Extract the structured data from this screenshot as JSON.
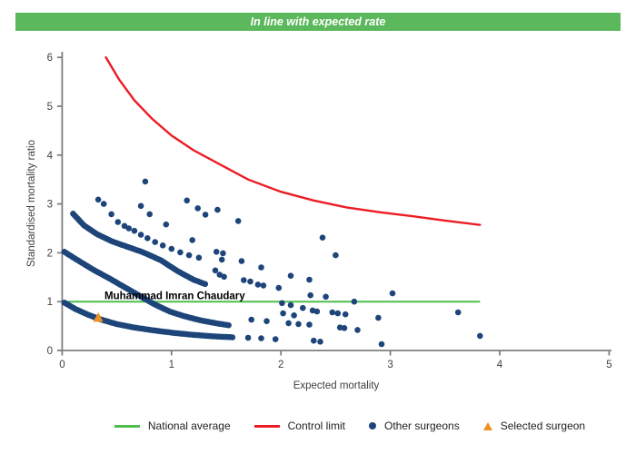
{
  "banner": {
    "text": "In line with expected rate",
    "bg": "#5cb85c",
    "fg": "#ffffff"
  },
  "chart_data": {
    "type": "scatter",
    "title": "",
    "xlabel": "Expected mortality",
    "ylabel": "Standardised mortality ratio",
    "xlim": [
      0,
      5
    ],
    "ylim": [
      0,
      6
    ],
    "xticks": [
      0,
      1,
      2,
      3,
      4,
      5
    ],
    "yticks": [
      0,
      1,
      2,
      3,
      4,
      5,
      6
    ],
    "grid": false,
    "legend_position": "bottom",
    "axis_color": "#7f7f7f",
    "tick_label_color": "#404040",
    "national_average": {
      "y": 1.0,
      "x_start": 0.0,
      "x_end": 3.82,
      "color": "#4dbd4d"
    },
    "control_limit": {
      "color": "#ed1c24",
      "points": [
        [
          0.4,
          6.0
        ],
        [
          0.52,
          5.55
        ],
        [
          0.66,
          5.12
        ],
        [
          0.82,
          4.75
        ],
        [
          1.0,
          4.4
        ],
        [
          1.2,
          4.1
        ],
        [
          1.45,
          3.8
        ],
        [
          1.7,
          3.5
        ],
        [
          2.0,
          3.25
        ],
        [
          2.3,
          3.07
        ],
        [
          2.6,
          2.93
        ],
        [
          2.9,
          2.83
        ],
        [
          3.2,
          2.75
        ],
        [
          3.5,
          2.66
        ],
        [
          3.82,
          2.57
        ]
      ]
    },
    "other_surgeons": {
      "color": "#1d4579",
      "dot_radius": 3.3,
      "bands": [
        {
          "name": "band-1-lowest",
          "spacing_px": 2.3,
          "anchors": [
            [
              0.02,
              0.98
            ],
            [
              0.12,
              0.85
            ],
            [
              0.24,
              0.73
            ],
            [
              0.36,
              0.63
            ],
            [
              0.5,
              0.54
            ],
            [
              0.66,
              0.47
            ],
            [
              0.84,
              0.41
            ],
            [
              1.02,
              0.36
            ],
            [
              1.2,
              0.32
            ],
            [
              1.38,
              0.29
            ],
            [
              1.56,
              0.27
            ]
          ]
        },
        {
          "name": "band-2",
          "spacing_px": 2.3,
          "anchors": [
            [
              0.02,
              2.02
            ],
            [
              0.14,
              1.85
            ],
            [
              0.28,
              1.66
            ],
            [
              0.42,
              1.49
            ],
            [
              0.56,
              1.31
            ],
            [
              0.7,
              1.13
            ],
            [
              0.84,
              0.95
            ],
            [
              0.98,
              0.8
            ],
            [
              1.12,
              0.7
            ],
            [
              1.26,
              0.62
            ],
            [
              1.4,
              0.56
            ],
            [
              1.54,
              0.51
            ]
          ]
        },
        {
          "name": "band-3",
          "spacing_px": 2.6,
          "anchors": [
            [
              0.1,
              2.8
            ],
            [
              0.2,
              2.56
            ],
            [
              0.32,
              2.38
            ],
            [
              0.46,
              2.23
            ],
            [
              0.6,
              2.12
            ],
            [
              0.74,
              2.01
            ],
            [
              0.9,
              1.85
            ],
            [
              1.06,
              1.62
            ],
            [
              1.2,
              1.45
            ],
            [
              1.32,
              1.35
            ]
          ]
        }
      ],
      "points": [
        [
          0.33,
          3.09
        ],
        [
          0.38,
          3.0
        ],
        [
          0.45,
          2.79
        ],
        [
          0.51,
          2.63
        ],
        [
          0.57,
          2.55
        ],
        [
          0.61,
          2.5
        ],
        [
          0.66,
          2.45
        ],
        [
          0.72,
          2.37
        ],
        [
          0.78,
          2.3
        ],
        [
          0.85,
          2.22
        ],
        [
          0.92,
          2.15
        ],
        [
          1.0,
          2.08
        ],
        [
          1.08,
          2.01
        ],
        [
          1.16,
          1.95
        ],
        [
          1.25,
          1.9
        ],
        [
          0.72,
          2.96
        ],
        [
          0.8,
          2.79
        ],
        [
          0.95,
          2.58
        ],
        [
          1.19,
          2.26
        ],
        [
          1.14,
          3.07
        ],
        [
          1.24,
          2.91
        ],
        [
          1.31,
          2.78
        ],
        [
          0.76,
          3.46
        ],
        [
          1.42,
          2.88
        ],
        [
          1.61,
          2.65
        ],
        [
          1.41,
          2.02
        ],
        [
          1.47,
          1.99
        ],
        [
          1.46,
          1.86
        ],
        [
          1.64,
          1.83
        ],
        [
          1.82,
          1.7
        ],
        [
          1.4,
          1.64
        ],
        [
          1.44,
          1.55
        ],
        [
          1.48,
          1.51
        ],
        [
          1.66,
          1.44
        ],
        [
          1.72,
          1.41
        ],
        [
          1.79,
          1.35
        ],
        [
          1.84,
          1.33
        ],
        [
          1.98,
          1.28
        ],
        [
          2.09,
          1.53
        ],
        [
          2.26,
          1.45
        ],
        [
          2.38,
          2.31
        ],
        [
          2.5,
          1.95
        ],
        [
          2.27,
          1.13
        ],
        [
          2.41,
          1.1
        ],
        [
          3.02,
          1.17
        ],
        [
          2.67,
          1.0
        ],
        [
          2.01,
          0.97
        ],
        [
          2.09,
          0.93
        ],
        [
          2.2,
          0.87
        ],
        [
          2.29,
          0.82
        ],
        [
          2.33,
          0.8
        ],
        [
          2.47,
          0.78
        ],
        [
          2.52,
          0.76
        ],
        [
          2.59,
          0.74
        ],
        [
          2.89,
          0.67
        ],
        [
          3.62,
          0.78
        ],
        [
          2.02,
          0.76
        ],
        [
          2.12,
          0.72
        ],
        [
          1.73,
          0.63
        ],
        [
          1.87,
          0.6
        ],
        [
          2.07,
          0.56
        ],
        [
          2.16,
          0.54
        ],
        [
          2.26,
          0.53
        ],
        [
          2.54,
          0.47
        ],
        [
          2.58,
          0.46
        ],
        [
          2.7,
          0.42
        ],
        [
          1.7,
          0.26
        ],
        [
          1.82,
          0.25
        ],
        [
          1.95,
          0.23
        ],
        [
          2.3,
          0.2
        ],
        [
          2.36,
          0.18
        ],
        [
          2.92,
          0.13
        ],
        [
          3.82,
          0.3
        ]
      ]
    },
    "selected_surgeon": {
      "label": "Muhammad Imran Chaudary",
      "x": 0.33,
      "y": 0.68,
      "color": "#ef8f25",
      "label_color": "#000000"
    }
  },
  "legend": {
    "items": [
      {
        "label": "National average",
        "swatch": "line",
        "color": "#4dbd4d"
      },
      {
        "label": "Control limit",
        "swatch": "line",
        "color": "#ed1c24"
      },
      {
        "label": "Other surgeons",
        "swatch": "dot",
        "color": "#1d4579"
      },
      {
        "label": "Selected surgeon",
        "swatch": "triangle",
        "color": "#ef8f25"
      }
    ]
  }
}
